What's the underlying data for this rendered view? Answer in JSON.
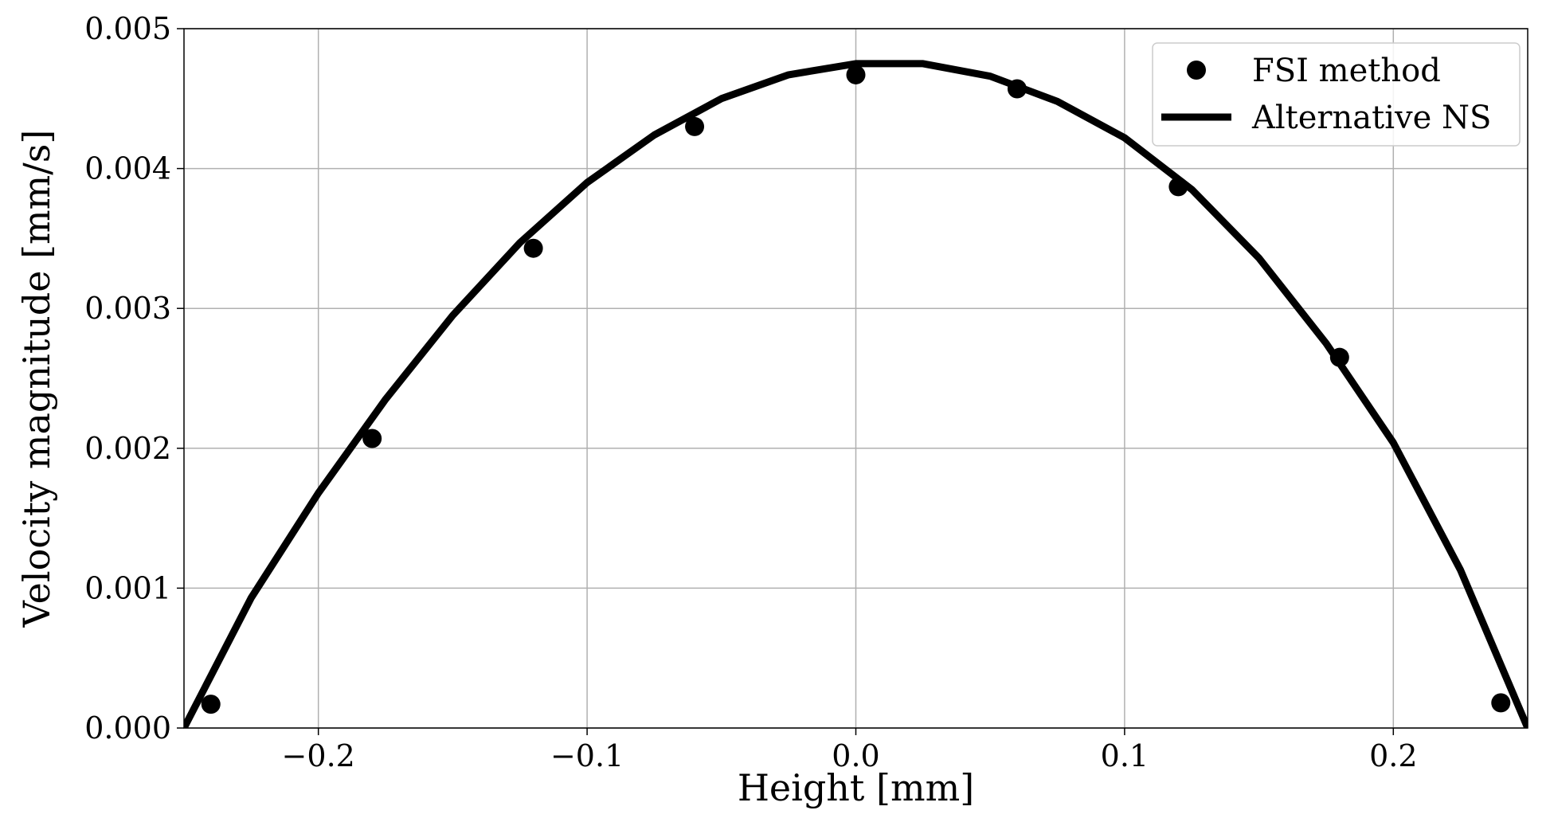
{
  "chart_data": {
    "type": "line",
    "xlabel": "Height [mm]",
    "ylabel": "Velocity magnitude [mm/s]",
    "xlim": [
      -0.25,
      0.25
    ],
    "ylim": [
      0.0,
      0.005
    ],
    "xticks": [
      -0.2,
      -0.1,
      0.0,
      0.1,
      0.2
    ],
    "xtick_labels": [
      "−0.2",
      "−0.1",
      "0.0",
      "0.1",
      "0.2"
    ],
    "yticks": [
      0.0,
      0.001,
      0.002,
      0.003,
      0.004,
      0.005
    ],
    "ytick_labels": [
      "0.000",
      "0.001",
      "0.002",
      "0.003",
      "0.004",
      "0.005"
    ],
    "grid": true,
    "legend_position": "top-right",
    "series": [
      {
        "name": "FSI method",
        "type": "scatter",
        "color": "#000000",
        "x": [
          -0.24,
          -0.18,
          -0.12,
          -0.06,
          0.0,
          0.06,
          0.12,
          0.18,
          0.24
        ],
        "y": [
          0.00017,
          0.00207,
          0.00343,
          0.0043,
          0.00467,
          0.00457,
          0.00387,
          0.00265,
          0.00018
        ]
      },
      {
        "name": "Alternative NS",
        "type": "line",
        "color": "#000000",
        "x": [
          -0.25,
          -0.225,
          -0.2,
          -0.175,
          -0.15,
          -0.125,
          -0.1,
          -0.075,
          -0.05,
          -0.025,
          0.0,
          0.025,
          0.05,
          0.075,
          0.1,
          0.125,
          0.15,
          0.175,
          0.2,
          0.225,
          0.25
        ],
        "y": [
          0.0,
          0.00093,
          0.00168,
          0.00235,
          0.00295,
          0.00347,
          0.0039,
          0.00424,
          0.0045,
          0.00467,
          0.00475,
          0.00475,
          0.00466,
          0.00448,
          0.00422,
          0.00385,
          0.00336,
          0.00275,
          0.00204,
          0.00113,
          0.0
        ]
      }
    ]
  }
}
